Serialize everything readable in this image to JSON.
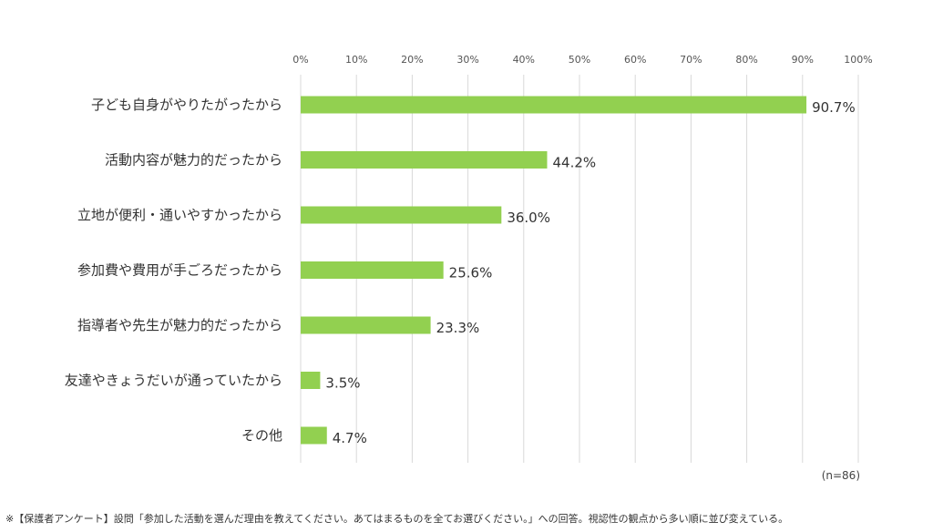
{
  "chart_data": {
    "type": "bar",
    "orientation": "horizontal",
    "categories": [
      "子ども自身がやりたがったから",
      "活動内容が魅力的だったから",
      "立地が便利・通いやすかったから",
      "参加費や費用が手ごろだったから",
      "指導者や先生が魅力的だったから",
      "友達やきょうだいが通っていたから",
      "その他"
    ],
    "values": [
      90.7,
      44.2,
      36.0,
      25.6,
      23.3,
      3.5,
      4.7
    ],
    "value_labels": [
      "90.7%",
      "44.2%",
      "36.0%",
      "25.6%",
      "23.3%",
      "3.5%",
      "4.7%"
    ],
    "xlim": [
      0,
      100
    ],
    "x_ticks": [
      0,
      10,
      20,
      30,
      40,
      50,
      60,
      70,
      80,
      90,
      100
    ],
    "x_tick_labels": [
      "0%",
      "10%",
      "20%",
      "30%",
      "40%",
      "50%",
      "60%",
      "70%",
      "80%",
      "90%",
      "100%"
    ],
    "axis_position": "top",
    "grid": true,
    "bar_color": "#92d050",
    "grid_color": "#d9d9d9",
    "sample_note": "(n=86)"
  },
  "footnote": "※【保護者アンケート】設問「参加した活動を選んだ理由を教えてください。あてはまるものを全てお選びください。」への回答。視認性の観点から多い順に並び変えている。"
}
